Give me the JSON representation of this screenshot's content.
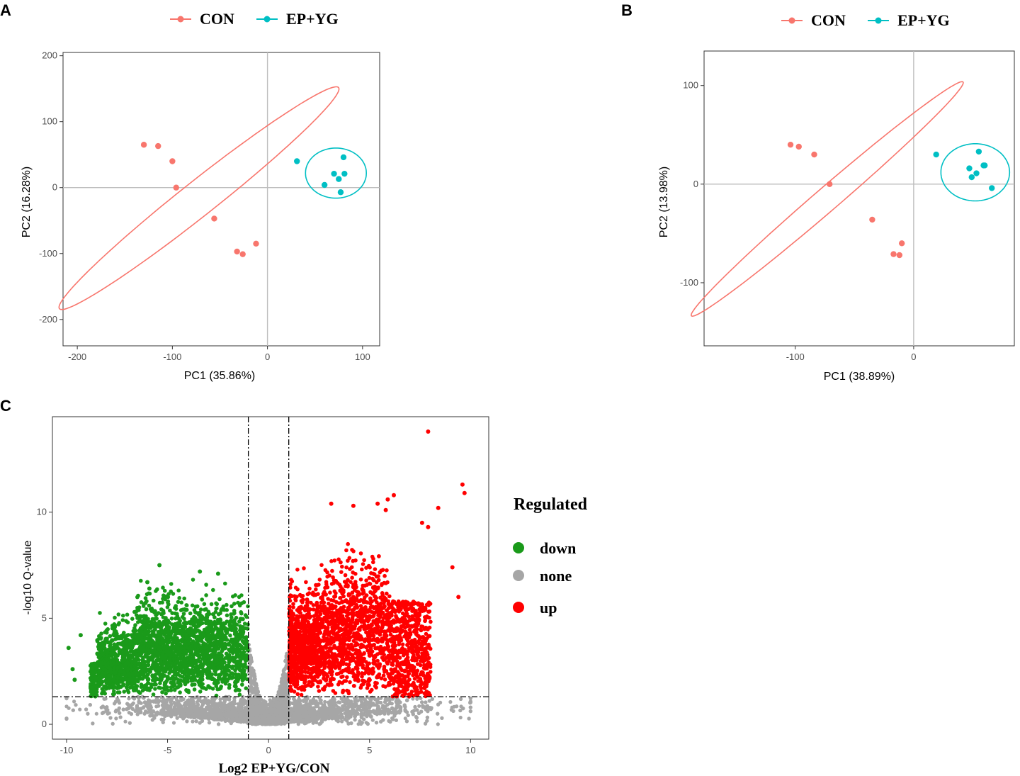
{
  "chart_data": [
    {
      "type": "scatter",
      "panel_label": "A",
      "xlabel": "PC1 (35.86%)",
      "ylabel": "PC2 (16.28%)",
      "xlim": [
        -215,
        118
      ],
      "ylim": [
        -240,
        205
      ],
      "xticks": [
        -200,
        -100,
        0,
        100
      ],
      "yticks": [
        -200,
        -100,
        0,
        100,
        200
      ],
      "legend": [
        {
          "name": "CON",
          "color": "#F8766D"
        },
        {
          "name": "EP+YG",
          "color": "#00BFC4"
        }
      ],
      "series": [
        {
          "name": "CON",
          "color": "#F8766D",
          "points": [
            [
              -130,
              65
            ],
            [
              -115,
              63
            ],
            [
              -100,
              40
            ],
            [
              -96,
              0
            ],
            [
              -56,
              -47
            ],
            [
              -32,
              -97
            ],
            [
              -26,
              -101
            ],
            [
              -12,
              -85
            ]
          ],
          "ellipse": {
            "cx": -72,
            "cy": -16,
            "rx": 223,
            "ry": 22,
            "rotation_deg": 49
          }
        },
        {
          "name": "EP+YG",
          "color": "#00BFC4",
          "points": [
            [
              31,
              40
            ],
            [
              60,
              4
            ],
            [
              70,
              21
            ],
            [
              75,
              13
            ],
            [
              80,
              46
            ],
            [
              81,
              21
            ],
            [
              77,
              -7
            ]
          ],
          "ellipse": {
            "cx": 72,
            "cy": 22,
            "rx": 32,
            "ry": 38,
            "rotation_deg": 0
          }
        }
      ]
    },
    {
      "type": "scatter",
      "panel_label": "B",
      "xlabel": "PC1 (38.89%)",
      "ylabel": "PC2 (13.98%)",
      "xlim": [
        -177,
        85
      ],
      "ylim": [
        -164,
        135
      ],
      "xticks": [
        -100,
        0
      ],
      "yticks": [
        -100,
        0,
        100
      ],
      "legend": [
        {
          "name": "CON",
          "color": "#F8766D"
        },
        {
          "name": "EP+YG",
          "color": "#00BFC4"
        }
      ],
      "series": [
        {
          "name": "CON",
          "color": "#F8766D",
          "points": [
            [
              -104,
              40
            ],
            [
              -97,
              38
            ],
            [
              -84,
              30
            ],
            [
              -71,
              0
            ],
            [
              -35,
              -36
            ],
            [
              -17,
              -71
            ],
            [
              -12,
              -72
            ],
            [
              -10,
              -60
            ]
          ],
          "ellipse": {
            "cx": -73,
            "cy": -15,
            "rx": 165,
            "ry": 11,
            "rotation_deg": 46
          }
        },
        {
          "name": "EP+YG",
          "color": "#00BFC4",
          "points": [
            [
              19,
              30
            ],
            [
              47,
              16
            ],
            [
              49,
              7
            ],
            [
              53,
              11
            ],
            [
              55,
              33
            ],
            [
              59,
              19
            ],
            [
              60,
              19
            ],
            [
              66,
              -4
            ]
          ],
          "ellipse": {
            "cx": 52,
            "cy": 12,
            "rx": 29,
            "ry": 29,
            "rotation_deg": -30
          }
        }
      ]
    },
    {
      "type": "scatter",
      "panel_label": "C",
      "title": "",
      "xlabel": "Log2  EP+YG/CON",
      "ylabel": "-log10 Q-value",
      "xlim": [
        -10.7,
        10.9
      ],
      "ylim": [
        -0.7,
        14.5
      ],
      "xticks": [
        -10,
        -5,
        0,
        5,
        10
      ],
      "yticks": [
        0,
        5,
        10
      ],
      "thresholds": {
        "log2fc": [
          -1,
          1
        ],
        "neg_log10_q": 1.3
      },
      "legend_title": "Regulated",
      "legend": [
        {
          "name": "down",
          "color": "#1A9A1A"
        },
        {
          "name": "none",
          "color": "#A6A6A6"
        },
        {
          "name": "up",
          "color": "#FF0000"
        }
      ],
      "highlight_points": {
        "up": [
          [
            7.9,
            13.8
          ],
          [
            9.6,
            11.3
          ],
          [
            9.7,
            10.9
          ],
          [
            6.2,
            10.8
          ],
          [
            5.9,
            10.6
          ],
          [
            5.4,
            10.4
          ],
          [
            3.1,
            10.4
          ],
          [
            4.2,
            10.3
          ],
          [
            8.4,
            10.2
          ],
          [
            5.8,
            10.1
          ],
          [
            7.6,
            9.5
          ],
          [
            7.9,
            9.3
          ],
          [
            9.1,
            7.4
          ],
          [
            9.4,
            6.0
          ]
        ],
        "down": [
          [
            -5.4,
            7.5
          ],
          [
            -3.4,
            7.2
          ],
          [
            -2.5,
            7.1
          ],
          [
            -6.0,
            6.7
          ],
          [
            -5.9,
            6.4
          ],
          [
            -9.3,
            4.2
          ],
          [
            -9.9,
            3.6
          ],
          [
            -9.7,
            2.6
          ],
          [
            -9.6,
            2.1
          ]
        ]
      },
      "point_counts": {
        "none": 5200,
        "down": 2600,
        "up": 2600
      }
    }
  ]
}
